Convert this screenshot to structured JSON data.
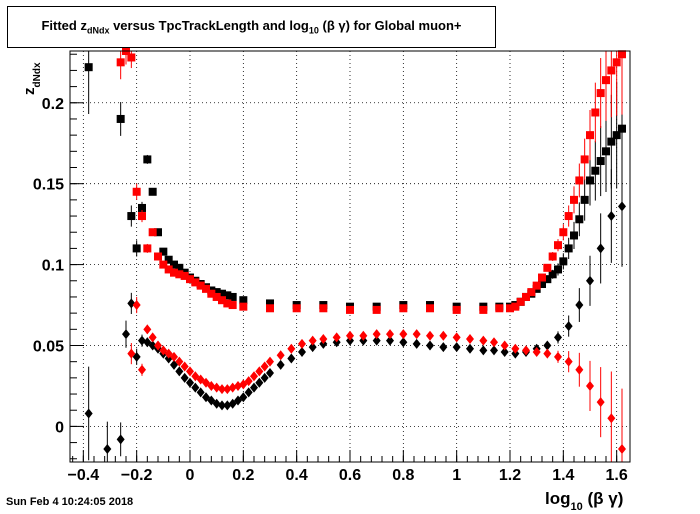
{
  "title": {
    "prefix": "Fitted  z",
    "z_sub": "dNdx",
    "middle": "  versus TpcTrackLength and log",
    "log_sub": "10",
    "suffix": " (β γ) for Global muon+"
  },
  "footer": {
    "timestamp": "Sun Feb  4 10:24:05 2018"
  },
  "chart_data": {
    "type": "scatter",
    "title": "Fitted z_dNdx versus TpcTrackLength and log10 (β γ) for Global muon+",
    "xlabel": "log10 (β γ)",
    "ylabel": "zdNdx",
    "axes": {
      "xlabel_main": "log",
      "xlabel_sub": "10",
      "xlabel_rest": " (β γ)",
      "ylabel_main": "z",
      "ylabel_sub": "dNdx"
    },
    "xlim": [
      -0.45,
      1.65
    ],
    "ylim": [
      -0.022,
      0.232
    ],
    "xticks": [
      -0.4,
      -0.2,
      0,
      0.2,
      0.4,
      0.6,
      0.8,
      1,
      1.2,
      1.4,
      1.6
    ],
    "xtick_labels": [
      "−0.4",
      "−0.2",
      "0",
      "0.2",
      "0.4",
      "0.6",
      "0.8",
      "1",
      "1.2",
      "1.4",
      "1.6"
    ],
    "yticks": [
      0,
      0.05,
      0.1,
      0.15,
      0.2
    ],
    "ytick_labels": [
      "0",
      "0.05",
      "0.1",
      "0.15",
      "0.2"
    ],
    "grid": true,
    "series": [
      {
        "marker": "square",
        "color": "#000000",
        "x": [
          -0.38,
          -0.26,
          -0.22,
          -0.2,
          -0.18,
          -0.16,
          -0.14,
          -0.12,
          -0.1,
          -0.08,
          -0.06,
          -0.04,
          -0.02,
          0.0,
          0.02,
          0.04,
          0.06,
          0.08,
          0.1,
          0.12,
          0.14,
          0.16,
          0.2,
          0.3,
          0.4,
          0.5,
          0.6,
          0.7,
          0.8,
          0.9,
          1.0,
          1.1,
          1.16,
          1.2,
          1.22,
          1.24,
          1.26,
          1.28,
          1.3,
          1.32,
          1.34,
          1.36,
          1.38,
          1.4,
          1.42,
          1.44,
          1.46,
          1.48,
          1.5,
          1.52,
          1.54,
          1.56,
          1.58,
          1.6,
          1.62
        ],
        "y": [
          0.222,
          0.19,
          0.13,
          0.11,
          0.135,
          0.165,
          0.145,
          0.12,
          0.108,
          0.103,
          0.1,
          0.098,
          0.095,
          0.092,
          0.09,
          0.088,
          0.086,
          0.084,
          0.083,
          0.082,
          0.081,
          0.08,
          0.078,
          0.076,
          0.075,
          0.075,
          0.074,
          0.074,
          0.075,
          0.075,
          0.074,
          0.074,
          0.074,
          0.074,
          0.075,
          0.077,
          0.08,
          0.082,
          0.085,
          0.088,
          0.091,
          0.094,
          0.097,
          0.102,
          0.11,
          0.118,
          0.128,
          0.14,
          0.152,
          0.158,
          0.164,
          0.17,
          0.176,
          0.18,
          0.184
        ]
      },
      {
        "marker": "square",
        "color": "#ff0000",
        "x": [
          -0.26,
          -0.24,
          -0.22,
          -0.2,
          -0.18,
          -0.16,
          -0.14,
          -0.12,
          -0.1,
          -0.08,
          -0.06,
          -0.04,
          -0.02,
          0.0,
          0.02,
          0.04,
          0.06,
          0.08,
          0.1,
          0.12,
          0.14,
          0.16,
          0.2,
          0.3,
          0.4,
          0.5,
          0.6,
          0.7,
          0.8,
          0.9,
          1.0,
          1.1,
          1.16,
          1.2,
          1.22,
          1.24,
          1.26,
          1.28,
          1.3,
          1.32,
          1.34,
          1.36,
          1.38,
          1.4,
          1.42,
          1.44,
          1.46,
          1.48,
          1.5,
          1.52,
          1.54,
          1.56,
          1.58,
          1.6,
          1.62
        ],
        "y": [
          0.225,
          0.232,
          0.228,
          0.145,
          0.13,
          0.11,
          0.12,
          0.105,
          0.1,
          0.097,
          0.095,
          0.094,
          0.093,
          0.091,
          0.089,
          0.087,
          0.085,
          0.082,
          0.08,
          0.078,
          0.076,
          0.075,
          0.074,
          0.073,
          0.073,
          0.073,
          0.072,
          0.072,
          0.073,
          0.073,
          0.072,
          0.072,
          0.073,
          0.073,
          0.074,
          0.077,
          0.08,
          0.083,
          0.087,
          0.092,
          0.098,
          0.105,
          0.112,
          0.12,
          0.13,
          0.14,
          0.152,
          0.165,
          0.18,
          0.194,
          0.206,
          0.214,
          0.22,
          0.225,
          0.23
        ]
      },
      {
        "marker": "diamond",
        "color": "#000000",
        "x": [
          -0.38,
          -0.31,
          -0.26,
          -0.24,
          -0.22,
          -0.2,
          -0.18,
          -0.16,
          -0.14,
          -0.12,
          -0.1,
          -0.08,
          -0.06,
          -0.04,
          -0.02,
          0.0,
          0.02,
          0.04,
          0.06,
          0.08,
          0.1,
          0.12,
          0.14,
          0.16,
          0.18,
          0.2,
          0.22,
          0.24,
          0.26,
          0.28,
          0.3,
          0.34,
          0.38,
          0.42,
          0.46,
          0.5,
          0.55,
          0.6,
          0.65,
          0.7,
          0.75,
          0.8,
          0.85,
          0.9,
          0.95,
          1.0,
          1.05,
          1.1,
          1.14,
          1.18,
          1.22,
          1.26,
          1.3,
          1.34,
          1.38,
          1.42,
          1.46,
          1.5,
          1.54,
          1.58,
          1.62
        ],
        "y": [
          0.008,
          -0.014,
          -0.008,
          0.057,
          0.076,
          0.043,
          0.053,
          0.052,
          0.05,
          0.048,
          0.045,
          0.042,
          0.038,
          0.034,
          0.03,
          0.027,
          0.024,
          0.021,
          0.018,
          0.016,
          0.014,
          0.013,
          0.013,
          0.014,
          0.016,
          0.018,
          0.021,
          0.024,
          0.027,
          0.03,
          0.033,
          0.038,
          0.042,
          0.046,
          0.049,
          0.051,
          0.052,
          0.053,
          0.053,
          0.053,
          0.053,
          0.052,
          0.051,
          0.05,
          0.049,
          0.049,
          0.048,
          0.047,
          0.047,
          0.046,
          0.045,
          0.046,
          0.048,
          0.05,
          0.055,
          0.062,
          0.075,
          0.09,
          0.11,
          0.13,
          0.136
        ]
      },
      {
        "marker": "diamond",
        "color": "#ff0000",
        "x": [
          -0.22,
          -0.2,
          -0.18,
          -0.16,
          -0.14,
          -0.12,
          -0.1,
          -0.08,
          -0.06,
          -0.04,
          -0.02,
          0.0,
          0.02,
          0.04,
          0.06,
          0.08,
          0.1,
          0.12,
          0.14,
          0.16,
          0.18,
          0.2,
          0.22,
          0.24,
          0.26,
          0.28,
          0.3,
          0.34,
          0.38,
          0.42,
          0.46,
          0.5,
          0.55,
          0.6,
          0.65,
          0.7,
          0.75,
          0.8,
          0.85,
          0.9,
          0.95,
          1.0,
          1.05,
          1.1,
          1.14,
          1.18,
          1.22,
          1.26,
          1.3,
          1.34,
          1.38,
          1.42,
          1.46,
          1.5,
          1.54,
          1.58,
          1.62
        ],
        "y": [
          0.045,
          0.075,
          0.035,
          0.06,
          0.055,
          0.05,
          0.047,
          0.045,
          0.043,
          0.04,
          0.037,
          0.034,
          0.031,
          0.029,
          0.027,
          0.025,
          0.024,
          0.023,
          0.023,
          0.024,
          0.025,
          0.026,
          0.028,
          0.031,
          0.034,
          0.037,
          0.04,
          0.044,
          0.048,
          0.051,
          0.053,
          0.054,
          0.055,
          0.056,
          0.056,
          0.057,
          0.057,
          0.057,
          0.057,
          0.056,
          0.056,
          0.055,
          0.054,
          0.053,
          0.052,
          0.05,
          0.048,
          0.047,
          0.046,
          0.045,
          0.043,
          0.04,
          0.035,
          0.025,
          0.015,
          0.005,
          -0.014
        ]
      }
    ]
  }
}
